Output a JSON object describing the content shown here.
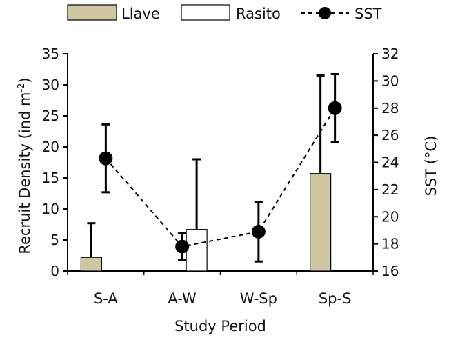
{
  "chart_data": {
    "type": "bar",
    "xlabel": "Study Period",
    "categories": [
      "S-A",
      "A-W",
      "W-Sp",
      "Sp-S"
    ],
    "y_left": {
      "label_main": "Recruit Density (ind m",
      "label_sup": "-2",
      "label_close": ")",
      "min": 0,
      "max": 35,
      "ticks": [
        0,
        5,
        10,
        15,
        20,
        25,
        30,
        35
      ]
    },
    "y_right": {
      "label": "SST (°C)",
      "min": 16,
      "max": 32,
      "ticks": [
        16,
        18,
        20,
        22,
        24,
        26,
        28,
        30,
        32
      ]
    },
    "legend": {
      "position": "top",
      "entries": [
        {
          "name": "Llave",
          "kind": "bar",
          "color": "#cfc7a2"
        },
        {
          "name": "Rasito",
          "kind": "bar",
          "color": "#ffffff"
        },
        {
          "name": "SST",
          "kind": "line",
          "color": "#000000"
        }
      ]
    },
    "series": [
      {
        "name": "Llave",
        "axis": "left",
        "color": "#cfc7a2",
        "values": [
          2.2,
          0,
          0,
          15.7
        ],
        "error": [
          5.5,
          0,
          0,
          15.8
        ]
      },
      {
        "name": "Rasito",
        "axis": "left",
        "color": "#ffffff",
        "values": [
          0,
          6.7,
          0,
          0
        ],
        "error": [
          0,
          11.3,
          0,
          0
        ]
      },
      {
        "name": "SST",
        "axis": "right",
        "type": "line",
        "style": "dashed",
        "marker": "circle",
        "color": "#000000",
        "values": [
          24.3,
          17.8,
          18.9,
          28.0
        ],
        "error": [
          2.5,
          1.0,
          2.2,
          2.5
        ]
      }
    ],
    "grid": false
  }
}
